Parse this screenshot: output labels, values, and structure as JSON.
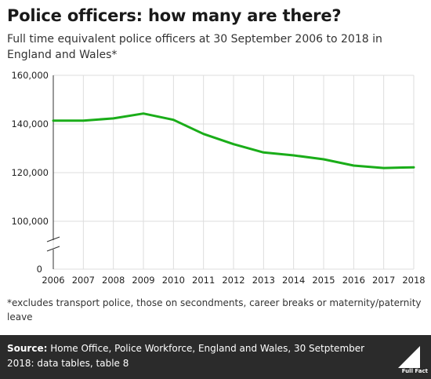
{
  "header": {
    "title": "Police officers: how many are there?",
    "subtitle": "Full time equivalent police officers at 30 September 2006 to 2018 in England and Wales*"
  },
  "chart_data": {
    "type": "line",
    "title": "Police officers: how many are there?",
    "subtitle": "Full time equivalent police officers at 30 September 2006 to 2018 in England and Wales*",
    "x": [
      2006,
      2007,
      2008,
      2009,
      2010,
      2011,
      2012,
      2013,
      2014,
      2015,
      2016,
      2017,
      2018
    ],
    "series": [
      {
        "values": [
          141400,
          141400,
          142300,
          144300,
          141700,
          135900,
          131700,
          128300,
          127100,
          125500,
          122900,
          121900,
          122200
        ],
        "color": "#1aad19"
      }
    ],
    "ylim": [
      100000,
      160000
    ],
    "y_ticks": [
      "160,000",
      "140,000",
      "120,000",
      "100,000",
      "0"
    ],
    "x_ticks": [
      "2006",
      "2007",
      "2008",
      "2009",
      "2010",
      "2011",
      "2012",
      "2013",
      "2014",
      "2015",
      "2016",
      "2017",
      "2018"
    ],
    "axis_break": true,
    "grid": true,
    "legend": "none"
  },
  "footnote": "*excludes transport police, those on secondments, career breaks or maternity/paternity leave",
  "footer": {
    "source_label": "Source:",
    "source_text": " Home Office, Police Workforce, England and Wales, 30 Setptember 2018: data tables, table 8",
    "logo_text": "Full Fact"
  },
  "colors": {
    "line": "#1aad19",
    "grid": "#dddddd",
    "footer_bg": "#2b2b2b"
  }
}
